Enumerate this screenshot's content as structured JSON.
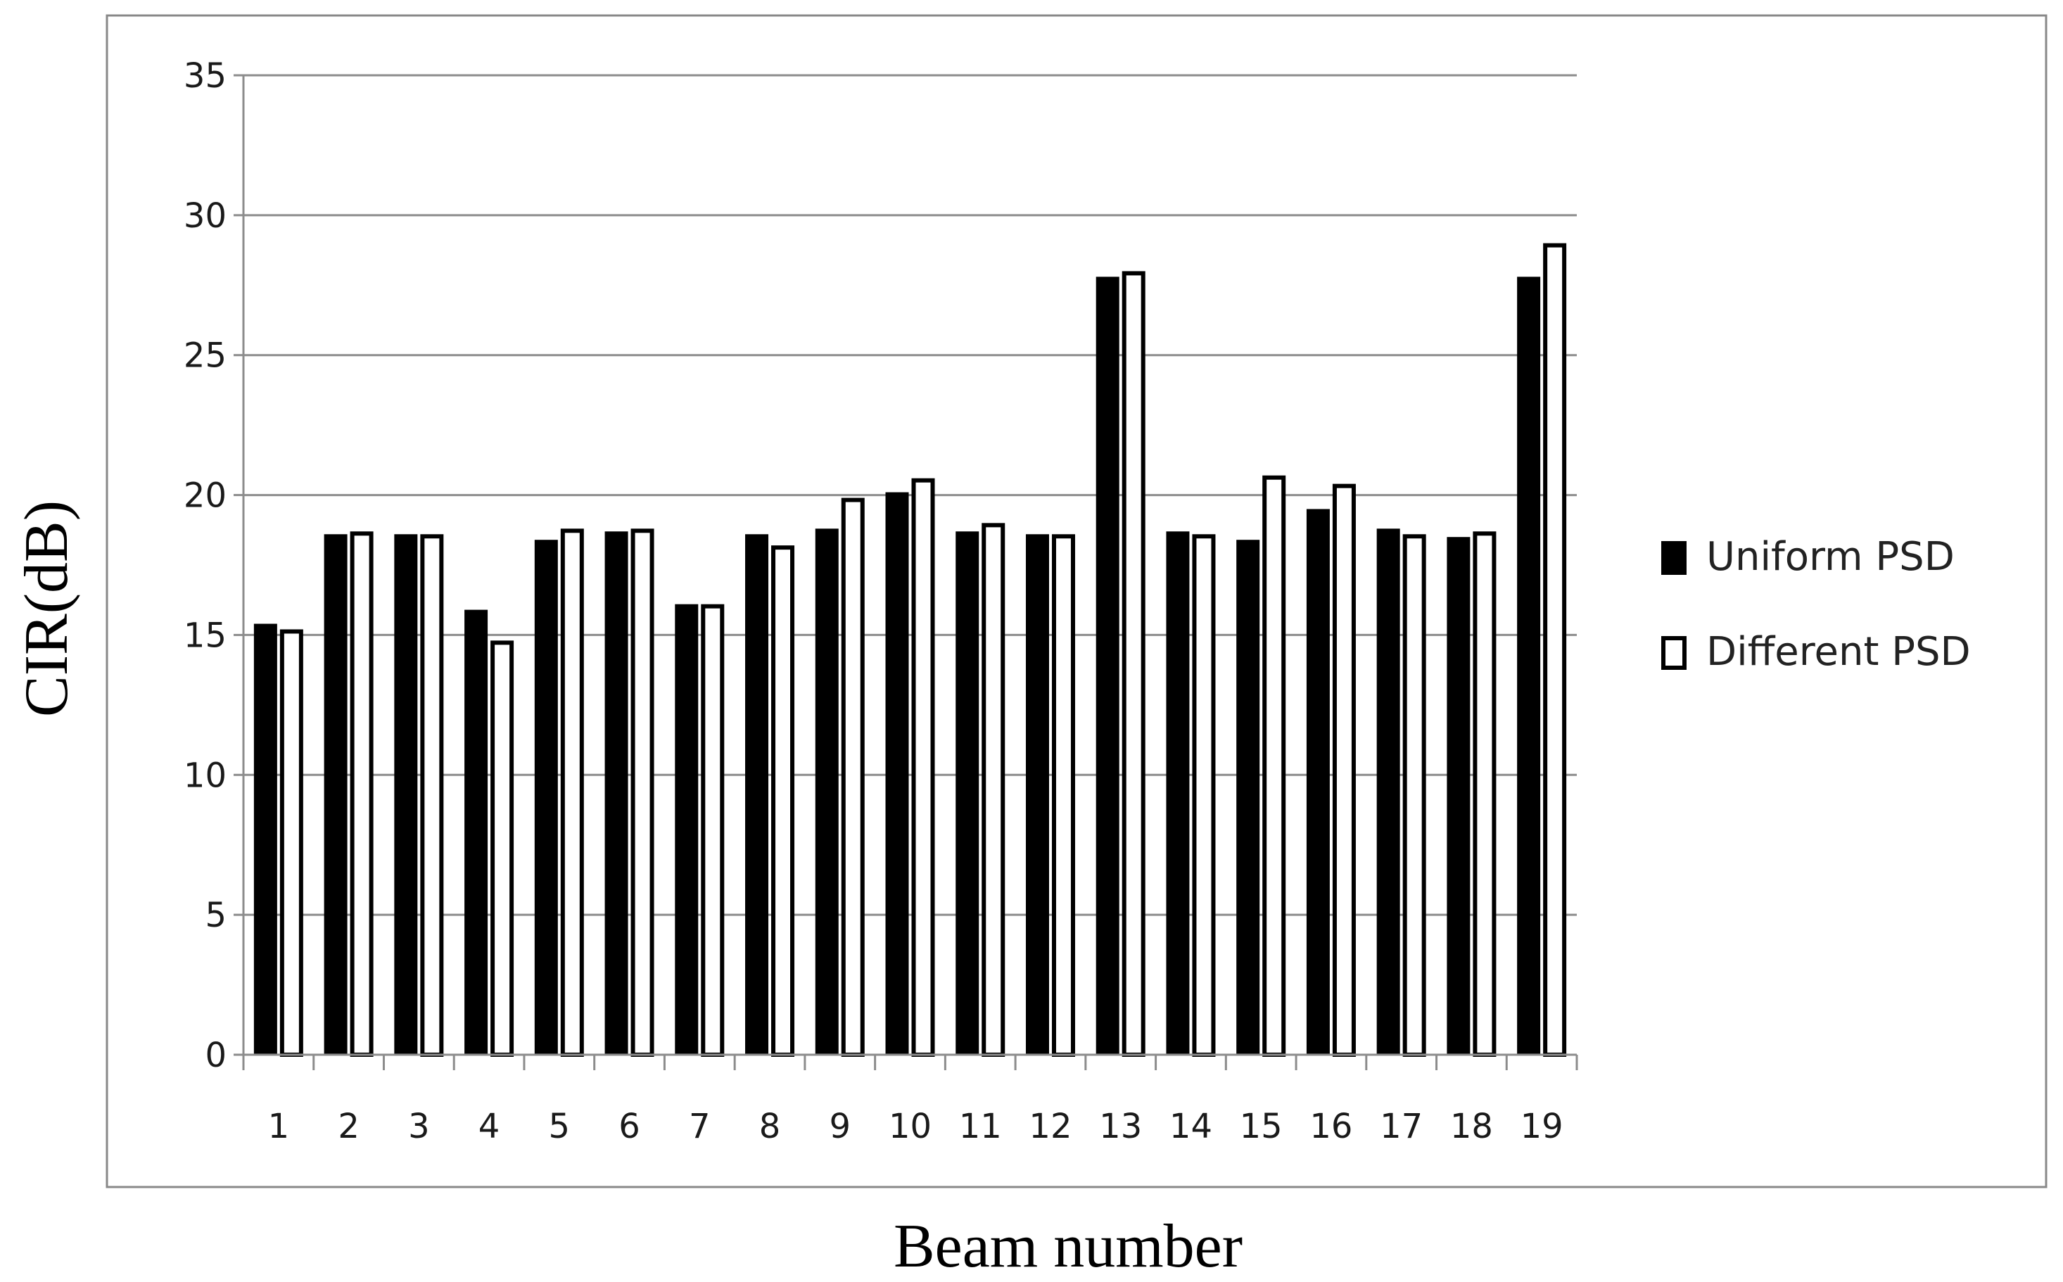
{
  "chart_data": {
    "type": "bar",
    "xlabel": "Beam number",
    "ylabel": "CIR(dB)",
    "ylim": [
      0,
      35
    ],
    "yticks": [
      0,
      5,
      10,
      15,
      20,
      25,
      30,
      35
    ],
    "grid": true,
    "legend_position": "right",
    "categories": [
      "1",
      "2",
      "3",
      "4",
      "5",
      "6",
      "7",
      "8",
      "9",
      "10",
      "11",
      "12",
      "13",
      "14",
      "15",
      "16",
      "17",
      "18",
      "19"
    ],
    "series": [
      {
        "name": "Uniform PSD",
        "color": "#000000",
        "fill": "solid",
        "values": [
          15.4,
          18.6,
          18.6,
          15.9,
          18.4,
          18.7,
          16.1,
          18.6,
          18.8,
          20.1,
          18.7,
          18.6,
          27.8,
          18.7,
          18.4,
          19.5,
          18.8,
          18.5,
          27.8
        ]
      },
      {
        "name": "Different PSD",
        "color": "#ffffff",
        "fill": "hollow",
        "values": [
          15.2,
          18.7,
          18.6,
          14.8,
          18.8,
          18.8,
          16.1,
          18.2,
          19.9,
          20.6,
          19.0,
          18.6,
          28.0,
          18.6,
          20.7,
          20.4,
          18.6,
          18.7,
          29.0
        ]
      }
    ]
  }
}
